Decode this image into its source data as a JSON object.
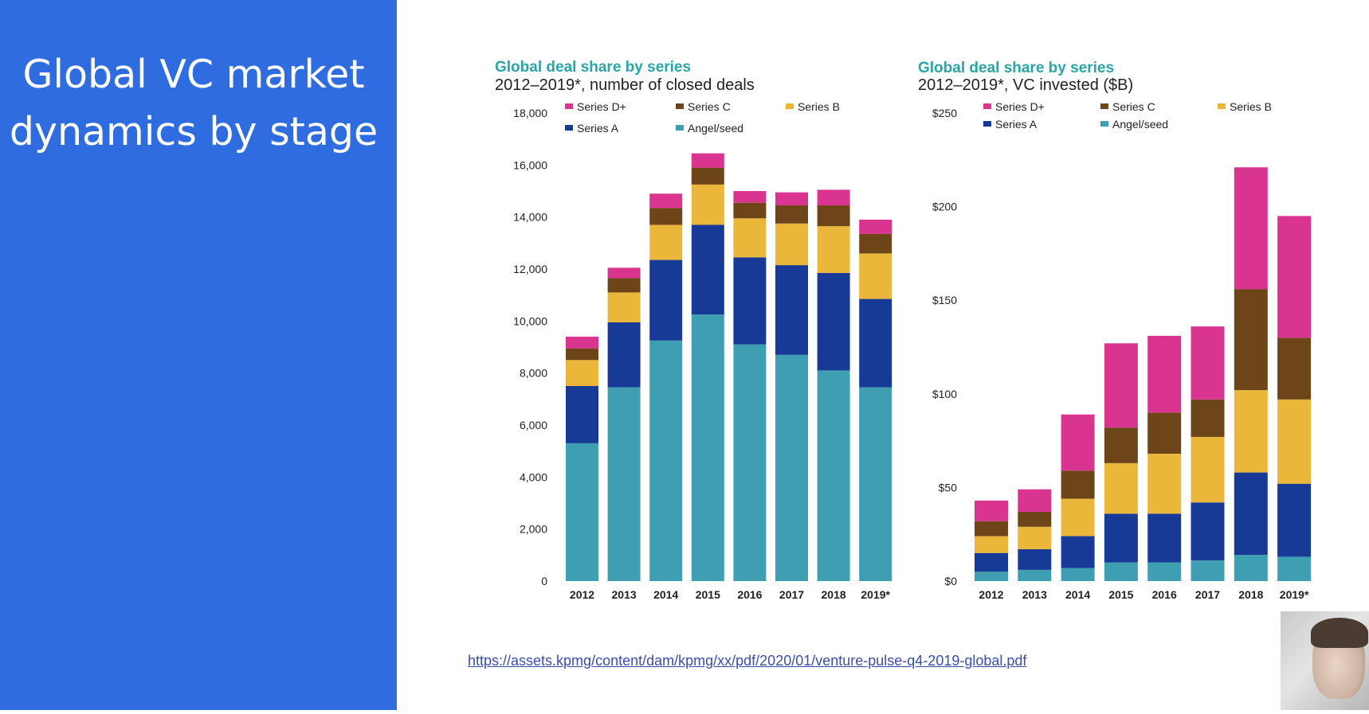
{
  "slide": {
    "title_line1": "Global VC market",
    "title_line2": "dynamics by stage",
    "source_url": "https://assets.kpmg/content/dam/kpmg/xx/pdf/2020/01/venture-pulse-q4-2019-global.pdf"
  },
  "colors": {
    "sidebar": "#2f6ce0",
    "Series D+": "#d9348f",
    "Series C": "#6e4519",
    "Series B": "#eab73a",
    "Series A": "#173a96",
    "Angel/seed": "#3f9fb2",
    "chart_title": "#2aa5a5"
  },
  "chart_data": [
    {
      "type": "bar",
      "stacked": true,
      "title": "Global deal share by series",
      "subtitle": "2012–2019*, number of closed deals",
      "categories": [
        "2012",
        "2013",
        "2014",
        "2015",
        "2016",
        "2017",
        "2018",
        "2019*"
      ],
      "ylim": [
        0,
        18000
      ],
      "yticks": [
        "0",
        "2,000",
        "4,000",
        "6,000",
        "8,000",
        "10,000",
        "12,000",
        "14,000",
        "16,000",
        "18,000"
      ],
      "ytick_values": [
        0,
        2000,
        4000,
        6000,
        8000,
        10000,
        12000,
        14000,
        16000,
        18000
      ],
      "legend": [
        "Series D+",
        "Series C",
        "Series B",
        "Series A",
        "Angel/seed"
      ],
      "series": [
        {
          "name": "Angel/seed",
          "values": [
            5300,
            7450,
            9250,
            10250,
            9100,
            8700,
            8100,
            7450
          ]
        },
        {
          "name": "Series A",
          "values": [
            2200,
            2500,
            3100,
            3450,
            3350,
            3450,
            3750,
            3400
          ]
        },
        {
          "name": "Series B",
          "values": [
            1000,
            1150,
            1350,
            1550,
            1500,
            1600,
            1800,
            1750
          ]
        },
        {
          "name": "Series C",
          "values": [
            450,
            550,
            650,
            650,
            600,
            700,
            800,
            750
          ]
        },
        {
          "name": "Series D+",
          "values": [
            450,
            400,
            550,
            550,
            450,
            500,
            600,
            550
          ]
        }
      ]
    },
    {
      "type": "bar",
      "stacked": true,
      "title": "Global deal share by series",
      "subtitle": "2012–2019*, VC invested ($B)",
      "categories": [
        "2012",
        "2013",
        "2014",
        "2015",
        "2016",
        "2017",
        "2018",
        "2019*"
      ],
      "ylim": [
        0,
        250
      ],
      "yticks": [
        "$0",
        "$50",
        "$100",
        "$150",
        "$200",
        "$250"
      ],
      "ytick_values": [
        0,
        50,
        100,
        150,
        200,
        250
      ],
      "legend": [
        "Series D+",
        "Series C",
        "Series B",
        "Series A",
        "Angel/seed"
      ],
      "series": [
        {
          "name": "Angel/seed",
          "values": [
            5,
            6,
            7,
            10,
            10,
            11,
            14,
            13
          ]
        },
        {
          "name": "Series A",
          "values": [
            10,
            11,
            17,
            26,
            26,
            31,
            44,
            39
          ]
        },
        {
          "name": "Series B",
          "values": [
            9,
            12,
            20,
            27,
            32,
            35,
            44,
            45
          ]
        },
        {
          "name": "Series C",
          "values": [
            8,
            8,
            15,
            19,
            22,
            20,
            54,
            33
          ]
        },
        {
          "name": "Series D+",
          "values": [
            11,
            12,
            30,
            45,
            41,
            39,
            65,
            65
          ]
        }
      ]
    }
  ]
}
